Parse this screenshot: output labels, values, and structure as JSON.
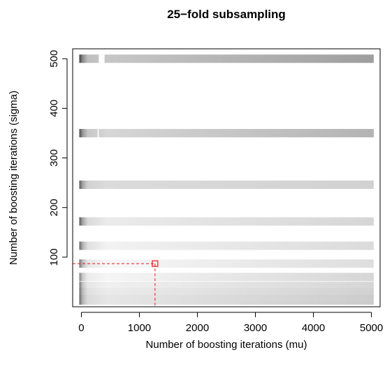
{
  "chart_data": {
    "type": "heatmap",
    "title": "25−fold subsampling",
    "xlabel": "Number of boosting iterations (mu)",
    "ylabel": "Number of boosting iterations (sigma)",
    "xlim": [
      -150,
      5150
    ],
    "ylim": [
      0,
      520
    ],
    "xticks": [
      0,
      1000,
      2000,
      3000,
      4000,
      5000
    ],
    "yticks": [
      100,
      200,
      300,
      400,
      500
    ],
    "grid": false,
    "colorscale": "grayscale (darker = lower risk)",
    "rows": [
      {
        "sigma": 500,
        "half_height": 6,
        "start_shades": [
          0.25,
          0.55,
          0.75,
          0.78
        ],
        "end_shade": 0.62,
        "gap": [
          300,
          400
        ]
      },
      {
        "sigma": 350,
        "half_height": 6,
        "start_shades": [
          0.3,
          0.6,
          0.78,
          0.84
        ],
        "end_shade": 0.7,
        "gap": [
          280,
          300
        ]
      },
      {
        "sigma": 246,
        "half_height": 6,
        "start_shades": [
          0.35,
          0.65,
          0.82,
          0.86
        ],
        "end_shade": 0.82
      },
      {
        "sigma": 172,
        "half_height": 6,
        "start_shades": [
          0.35,
          0.65,
          0.85,
          0.92
        ],
        "end_shade": 0.84
      },
      {
        "sigma": 123,
        "half_height": 6,
        "start_shades": [
          0.4,
          0.7,
          0.88,
          0.95
        ],
        "end_shade": 0.86
      },
      {
        "sigma": 87,
        "half_height": 6,
        "start_shades": [
          0.45,
          0.75,
          0.9,
          0.97
        ],
        "end_shade": 0.87
      },
      {
        "sigma": 60,
        "half_height": 6,
        "start_shades": [
          0.5,
          0.8,
          0.92,
          0.96
        ],
        "end_shade": 0.84
      },
      {
        "sigma": 42,
        "half_height": 6,
        "start_shades": [
          0.45,
          0.78,
          0.9,
          0.94
        ],
        "end_shade": 0.84
      },
      {
        "sigma": 28,
        "half_height": 7,
        "start_shades": [
          0.42,
          0.75,
          0.88,
          0.92
        ],
        "end_shade": 0.82
      },
      {
        "sigma": 14,
        "half_height": 7,
        "start_shades": [
          0.4,
          0.72,
          0.86,
          0.9
        ],
        "end_shade": 0.8
      }
    ],
    "optimum": {
      "mu": 1270,
      "sigma": 87
    },
    "optimum_color": "#e41a1c"
  }
}
